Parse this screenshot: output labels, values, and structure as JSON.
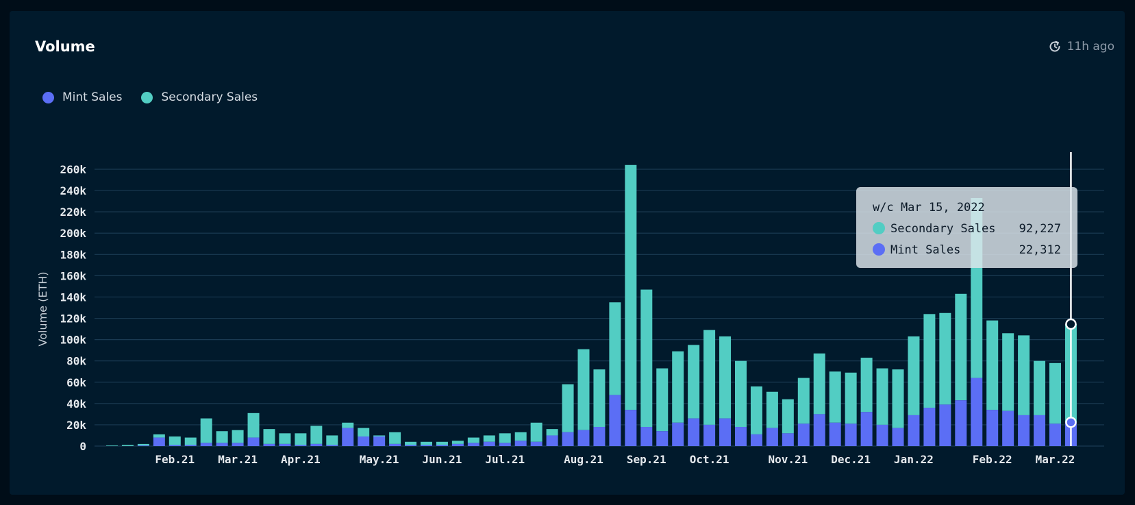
{
  "header": {
    "title": "Volume",
    "refresh_icon": "refresh-clock-icon",
    "updated": "11h ago"
  },
  "colors": {
    "mint": "#5b6ef5",
    "secondary": "#52cdc3",
    "grid": "#1a3a52",
    "background": "#011a2c"
  },
  "legend": {
    "position": "top-left",
    "items": [
      "Mint Sales",
      "Secondary Sales"
    ]
  },
  "tooltip": {
    "title": "w/c Mar 15, 2022",
    "rows": [
      {
        "label": "Secondary Sales",
        "value": "92,227"
      },
      {
        "label": "Mint Sales",
        "value": "22,312"
      }
    ]
  },
  "chart_data": {
    "type": "bar",
    "stacked": true,
    "ylabel": "Volume (ETH)",
    "ylim": [
      0,
      280000
    ],
    "yticks": [
      0,
      20000,
      40000,
      60000,
      80000,
      100000,
      120000,
      140000,
      160000,
      180000,
      200000,
      220000,
      240000,
      260000
    ],
    "ytick_labels": [
      "0",
      "20k",
      "40k",
      "60k",
      "80k",
      "100k",
      "120k",
      "140k",
      "160k",
      "180k",
      "200k",
      "220k",
      "240k",
      "260k"
    ],
    "grid": true,
    "x_labels": [
      {
        "label": "Feb.21",
        "index": 4
      },
      {
        "label": "Mar.21",
        "index": 8
      },
      {
        "label": "Apr.21",
        "index": 12
      },
      {
        "label": "May.21",
        "index": 17
      },
      {
        "label": "Jun.21",
        "index": 21
      },
      {
        "label": "Jul.21",
        "index": 25
      },
      {
        "label": "Aug.21",
        "index": 30
      },
      {
        "label": "Sep.21",
        "index": 34
      },
      {
        "label": "Oct.21",
        "index": 38
      },
      {
        "label": "Nov.21",
        "index": 43
      },
      {
        "label": "Dec.21",
        "index": 47
      },
      {
        "label": "Jan.22",
        "index": 51
      },
      {
        "label": "Feb.22",
        "index": 56
      },
      {
        "label": "Mar.22",
        "index": 60
      }
    ],
    "series": [
      {
        "name": "Mint Sales",
        "values": [
          0,
          0,
          500,
          8000,
          1000,
          1000,
          3000,
          3000,
          3000,
          8000,
          2000,
          2000,
          1000,
          2000,
          1000,
          17000,
          9000,
          9000,
          2000,
          1000,
          1000,
          1000,
          2000,
          3000,
          4000,
          3000,
          5000,
          4000,
          10000,
          13000,
          15000,
          18000,
          48000,
          34000,
          18000,
          14000,
          22000,
          26000,
          20000,
          26000,
          18000,
          11000,
          17000,
          12000,
          21000,
          30000,
          22000,
          21000,
          32000,
          20000,
          17000,
          29000,
          36000,
          39000,
          43000,
          64000,
          34000,
          33000,
          29000,
          29000,
          21000,
          22312
        ]
      },
      {
        "name": "Secondary Sales",
        "values": [
          500,
          1000,
          1500,
          3000,
          8000,
          7000,
          23000,
          11000,
          12000,
          23000,
          14000,
          10000,
          11000,
          17000,
          9000,
          5000,
          8000,
          1000,
          11000,
          3000,
          3000,
          3000,
          3000,
          5000,
          6000,
          9000,
          8000,
          18000,
          6000,
          45000,
          76000,
          54000,
          87000,
          230000,
          129000,
          59000,
          67000,
          69000,
          89000,
          77000,
          62000,
          45000,
          34000,
          32000,
          43000,
          57000,
          48000,
          48000,
          51000,
          53000,
          55000,
          74000,
          88000,
          86000,
          100000,
          169000,
          84000,
          73000,
          75000,
          51000,
          57000,
          92227
        ]
      }
    ]
  }
}
